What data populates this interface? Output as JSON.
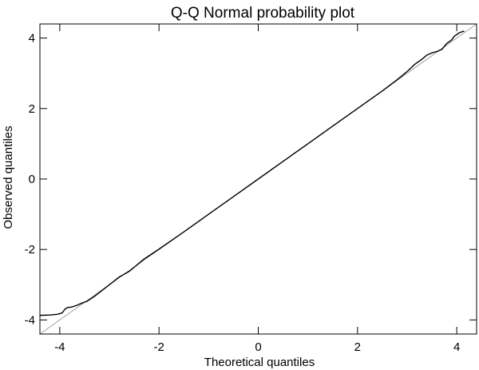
{
  "chart_data": {
    "type": "line",
    "title": "Q-Q Normal probability plot",
    "xlabel": "Theoretical quantiles",
    "ylabel": "Observed quantiles",
    "xlim": [
      -4.4,
      4.4
    ],
    "ylim": [
      -4.4,
      4.4
    ],
    "x_ticks": [
      -4,
      -2,
      0,
      2,
      4
    ],
    "y_ticks": [
      -4,
      -2,
      0,
      2,
      4
    ],
    "x_tick_labels": [
      "-4",
      "-2",
      "0",
      "2",
      "4"
    ],
    "y_tick_labels": [
      "-4",
      "-2",
      "0",
      "2",
      "4"
    ],
    "grid": false,
    "reference_line": {
      "from": [
        -4.4,
        -4.4
      ],
      "to": [
        4.4,
        4.4
      ],
      "color": "#a0a0a0"
    },
    "series": [
      {
        "color": "#000000",
        "points": [
          [
            -4.4,
            -3.87
          ],
          [
            -4.2,
            -3.86
          ],
          [
            -4.05,
            -3.84
          ],
          [
            -3.95,
            -3.8
          ],
          [
            -3.9,
            -3.7
          ],
          [
            -3.85,
            -3.65
          ],
          [
            -3.75,
            -3.63
          ],
          [
            -3.65,
            -3.58
          ],
          [
            -3.55,
            -3.52
          ],
          [
            -3.45,
            -3.47
          ],
          [
            -3.3,
            -3.33
          ],
          [
            -3.2,
            -3.22
          ],
          [
            -3.0,
            -3.0
          ],
          [
            -2.8,
            -2.78
          ],
          [
            -2.6,
            -2.62
          ],
          [
            -2.3,
            -2.27
          ],
          [
            -2.0,
            -1.99
          ],
          [
            -1.5,
            -1.5
          ],
          [
            -1.0,
            -1.0
          ],
          [
            -0.5,
            -0.5
          ],
          [
            0.0,
            0.0
          ],
          [
            0.5,
            0.5
          ],
          [
            1.0,
            1.0
          ],
          [
            1.5,
            1.5
          ],
          [
            2.0,
            2.0
          ],
          [
            2.5,
            2.5
          ],
          [
            2.8,
            2.82
          ],
          [
            3.0,
            3.05
          ],
          [
            3.15,
            3.25
          ],
          [
            3.3,
            3.4
          ],
          [
            3.4,
            3.52
          ],
          [
            3.5,
            3.58
          ],
          [
            3.6,
            3.62
          ],
          [
            3.7,
            3.68
          ],
          [
            3.8,
            3.85
          ],
          [
            3.9,
            3.95
          ],
          [
            3.95,
            4.05
          ],
          [
            4.05,
            4.15
          ],
          [
            4.15,
            4.2
          ]
        ]
      }
    ]
  }
}
